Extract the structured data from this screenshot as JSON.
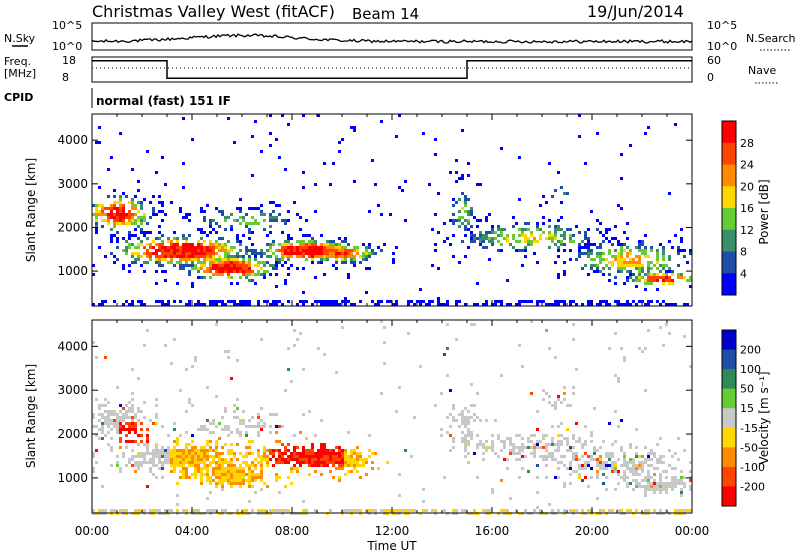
{
  "header": {
    "site": "Christmas Valley West (fitACF)",
    "beam": "Beam 14",
    "date": "19/Jun/2014"
  },
  "noise_panel": {
    "left_label": "N.Sky",
    "right_label": "N.Search",
    "left_ticks": [
      "10^5",
      "10^0"
    ],
    "right_ticks": [
      "10^5",
      "10^0"
    ]
  },
  "freq_panel": {
    "left_label_1": "Freq.",
    "left_label_2": "[MHz]",
    "right_label": "Nave",
    "left_ticks": [
      "18",
      "8"
    ],
    "right_ticks": [
      "60",
      "0"
    ],
    "freq_series_x_hours": [
      0,
      3,
      3,
      15,
      15,
      24
    ],
    "freq_series_mhz": [
      16.5,
      16.5,
      9.5,
      9.5,
      16.5,
      16.5
    ]
  },
  "cpid": {
    "label": "CPID",
    "mode": "normal (fast) 151 IF"
  },
  "chart_data": [
    {
      "type": "heatmap",
      "name": "power",
      "ylabel": "Slant Range [km]",
      "xlabel": "Time UT",
      "ylim": [
        200,
        4600
      ],
      "xlim": [
        0,
        24
      ],
      "y_ticks": [
        "1000",
        "2000",
        "3000",
        "4000"
      ],
      "colorbar": {
        "label": "Power [dB]",
        "ticks": [
          "28",
          "24",
          "20",
          "16",
          "12",
          "8",
          "4"
        ],
        "colors": [
          "#ff0000",
          "#ff4500",
          "#ff8c00",
          "#ffd700",
          "#66cc33",
          "#3a8f6b",
          "#1e4fa8",
          "#0000ff"
        ]
      }
    },
    {
      "type": "heatmap",
      "name": "velocity",
      "ylabel": "Slant Range [km]",
      "xlabel": "Time UT",
      "ylim": [
        200,
        4600
      ],
      "xlim": [
        0,
        24
      ],
      "y_ticks": [
        "1000",
        "2000",
        "3000",
        "4000"
      ],
      "x_ticks": [
        "00:00",
        "04:00",
        "08:00",
        "12:00",
        "16:00",
        "20:00",
        "00:00"
      ],
      "colorbar": {
        "label": "Velocity [m s⁻¹]",
        "ticks": [
          "200",
          "100",
          "50",
          "15",
          "-15",
          "-50",
          "-100",
          "-200"
        ],
        "colors": [
          "#0000cc",
          "#1e4fa8",
          "#2e8b57",
          "#66cc33",
          "#c8c8c8",
          "#ffd700",
          "#ff8c00",
          "#ff4500",
          "#ff0000"
        ]
      }
    }
  ]
}
